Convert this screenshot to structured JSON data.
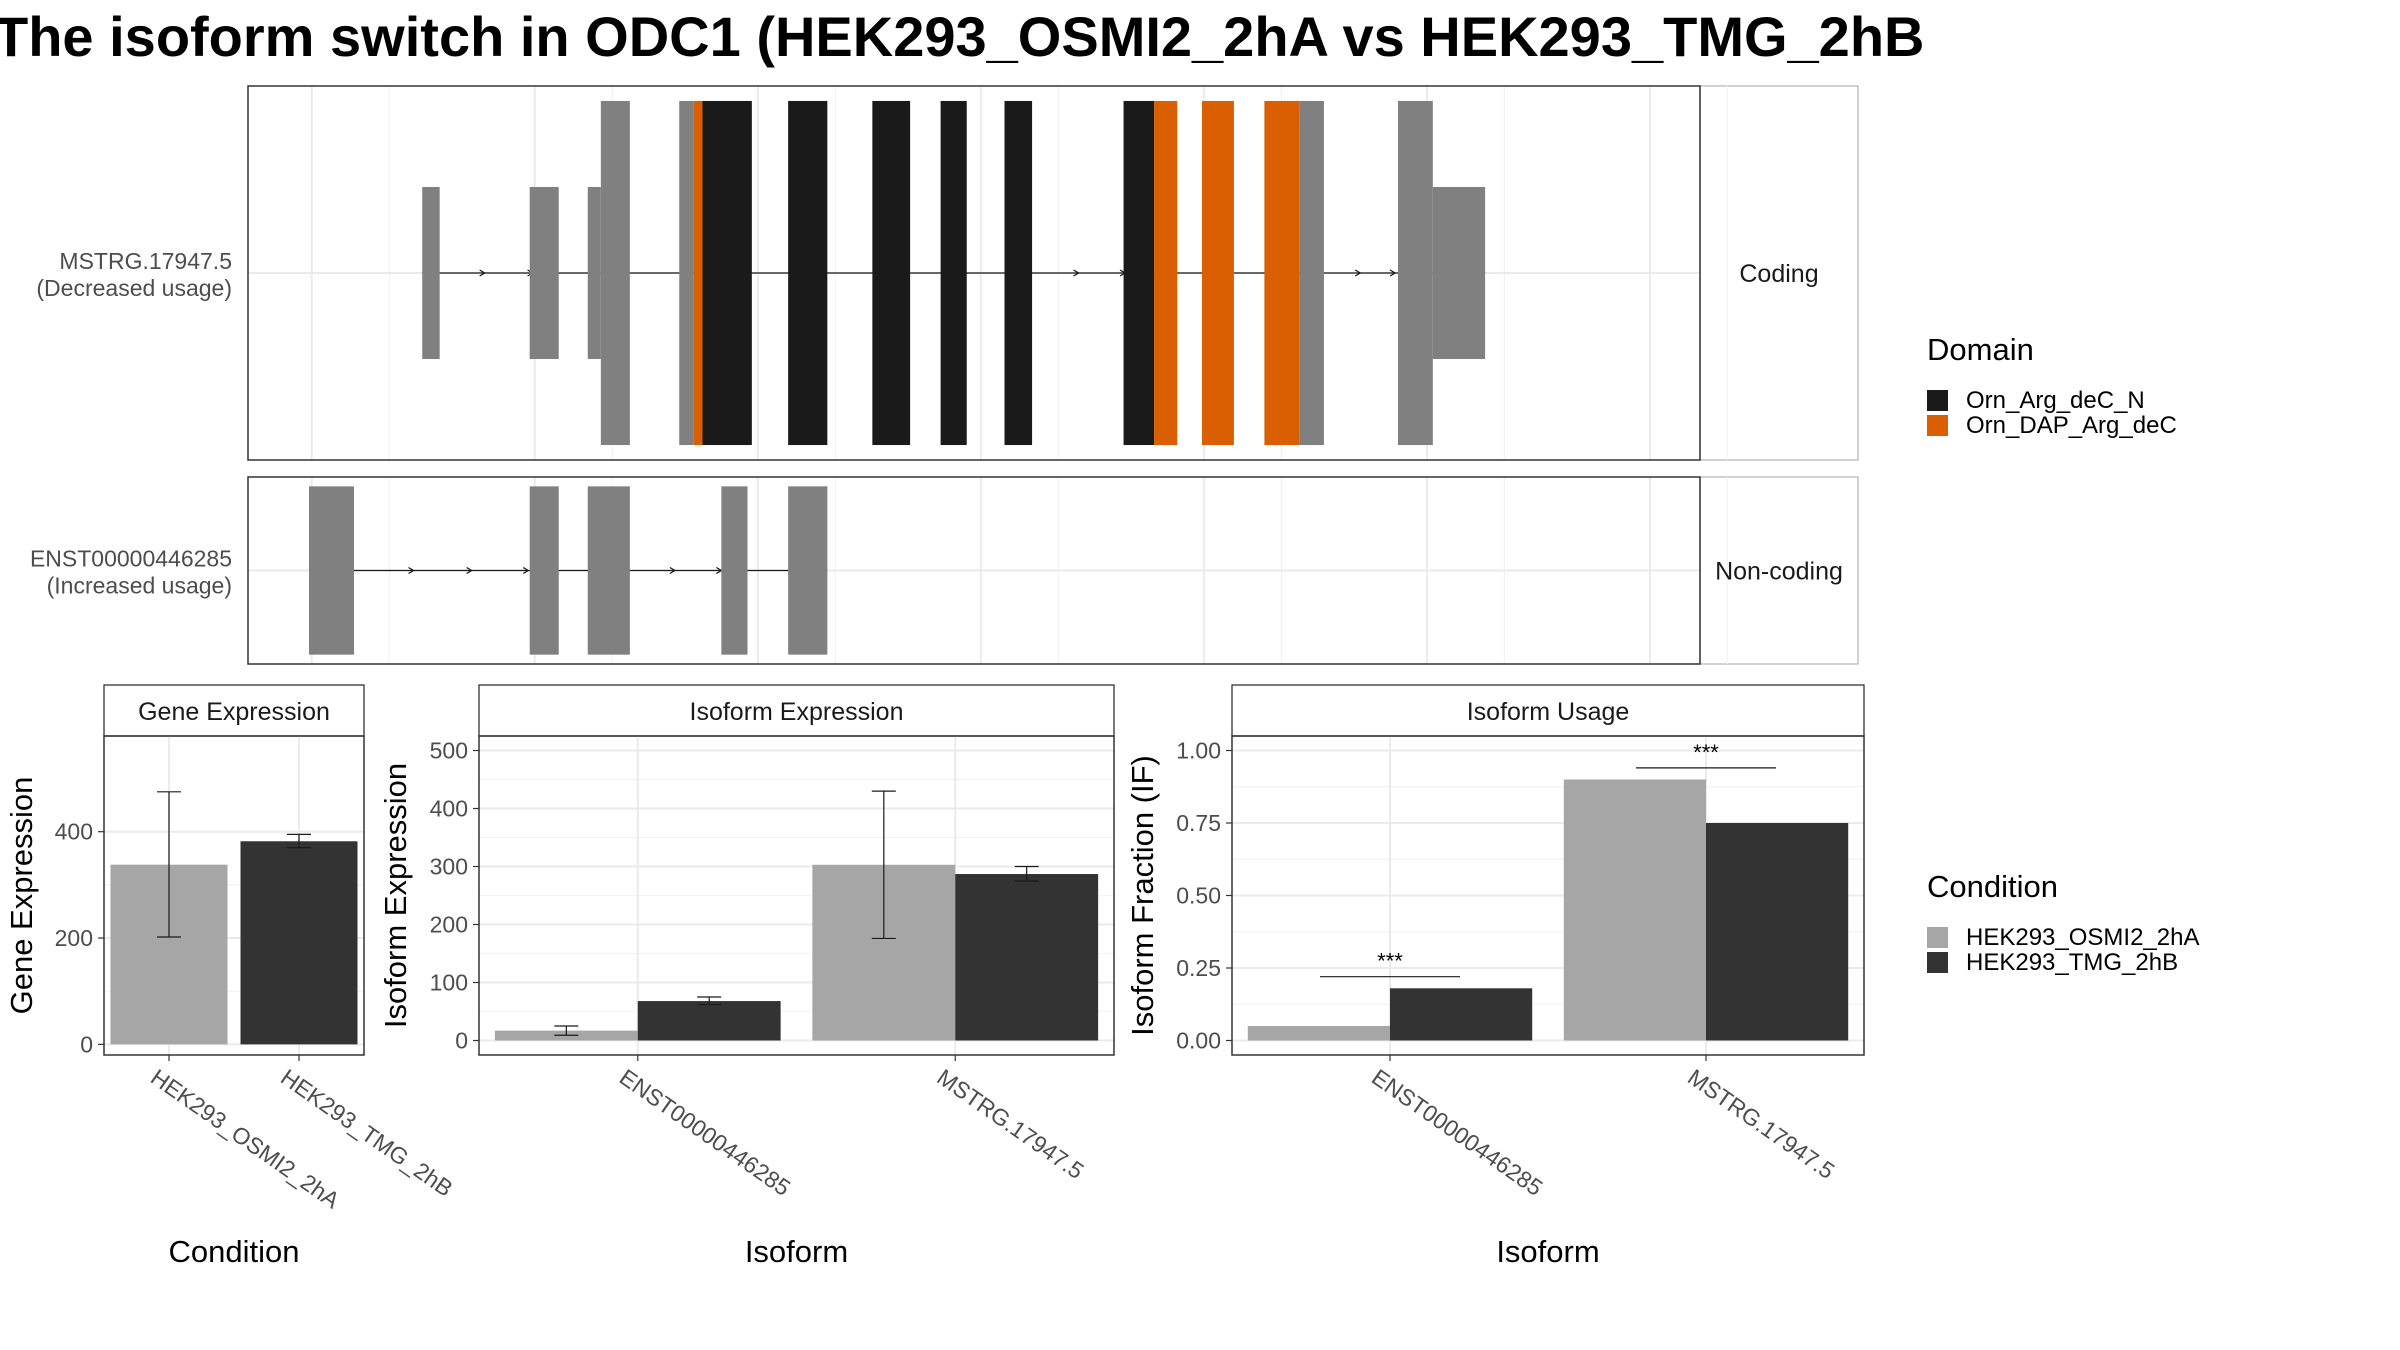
{
  "title": "The isoform switch in ODC1 (HEK293_OSMI2_2hA vs HEK293_TMG_2hB",
  "colors": {
    "exon": "#808080",
    "domain_n": "#1a1a1a",
    "domain_dap": "#d95f02",
    "cond_a": "#a6a6a6",
    "cond_b": "#333333"
  },
  "transcripts": [
    {
      "name": "MSTRG.17947.5",
      "usage": "(Decreased usage)",
      "category": "Coding",
      "span": [
        0.02,
        0.85
      ],
      "exons": [
        {
          "start": 0.12,
          "end": 0.132,
          "kind": "utr"
        },
        {
          "start": 0.194,
          "end": 0.214,
          "kind": "utr"
        },
        {
          "start": 0.234,
          "end": 0.243,
          "kind": "utr"
        },
        {
          "start": 0.243,
          "end": 0.263,
          "kind": "cds"
        },
        {
          "start": 0.297,
          "end": 0.307,
          "kind": "cds"
        },
        {
          "start": 0.307,
          "end": 0.313,
          "kind": "dap"
        },
        {
          "start": 0.313,
          "end": 0.347,
          "kind": "n"
        },
        {
          "start": 0.372,
          "end": 0.399,
          "kind": "n"
        },
        {
          "start": 0.43,
          "end": 0.456,
          "kind": "n"
        },
        {
          "start": 0.477,
          "end": 0.495,
          "kind": "n"
        },
        {
          "start": 0.521,
          "end": 0.54,
          "kind": "n"
        },
        {
          "start": 0.603,
          "end": 0.624,
          "kind": "n"
        },
        {
          "start": 0.624,
          "end": 0.64,
          "kind": "dap"
        },
        {
          "start": 0.657,
          "end": 0.679,
          "kind": "dap"
        },
        {
          "start": 0.7,
          "end": 0.724,
          "kind": "dap"
        },
        {
          "start": 0.724,
          "end": 0.741,
          "kind": "cds"
        },
        {
          "start": 0.792,
          "end": 0.816,
          "kind": "cds"
        },
        {
          "start": 0.816,
          "end": 0.852,
          "kind": "utr"
        }
      ],
      "arrows": [
        0.163,
        0.196,
        0.572,
        0.604,
        0.766,
        0.79
      ]
    },
    {
      "name": "ENST00000446285",
      "usage": "(Increased usage)",
      "category": "Non-coding",
      "span": [
        0.04,
        0.4
      ],
      "exons": [
        {
          "start": 0.042,
          "end": 0.073,
          "kind": "utr"
        },
        {
          "start": 0.194,
          "end": 0.214,
          "kind": "utr"
        },
        {
          "start": 0.234,
          "end": 0.263,
          "kind": "utr"
        },
        {
          "start": 0.326,
          "end": 0.344,
          "kind": "utr"
        },
        {
          "start": 0.372,
          "end": 0.399,
          "kind": "utr"
        }
      ],
      "arrows": [
        0.114,
        0.154,
        0.193,
        0.294,
        0.326
      ]
    }
  ],
  "legend_domain": {
    "title": "Domain",
    "items": [
      {
        "label": "Orn_Arg_deC_N",
        "color": "#1a1a1a"
      },
      {
        "label": "Orn_DAP_Arg_deC",
        "color": "#d95f02"
      }
    ]
  },
  "legend_condition": {
    "title": "Condition",
    "items": [
      {
        "label": "HEK293_OSMI2_2hA",
        "color": "#a6a6a6"
      },
      {
        "label": "HEK293_TMG_2hB",
        "color": "#333333"
      }
    ]
  },
  "chart_data": [
    {
      "type": "bar",
      "title": "Gene Expression",
      "xlabel": "Condition",
      "ylabel": "Gene Expression",
      "ylim": [
        -20,
        580
      ],
      "yticks": [
        0,
        200,
        400
      ],
      "yticklabels": [
        "0",
        "200",
        "400"
      ],
      "categories": [
        "HEK293_OSMI2_2hA",
        "HEK293_TMG_2hB"
      ],
      "series": [
        {
          "values": [
            338,
            382
          ],
          "error_low": [
            202,
            370
          ],
          "error_high": [
            475,
            395
          ]
        }
      ],
      "significance": []
    },
    {
      "type": "bar",
      "title": "Isoform Expression",
      "xlabel": "Isoform",
      "ylabel": "Isoform Expression",
      "ylim": [
        -25,
        525
      ],
      "yticks": [
        0,
        100,
        200,
        300,
        400,
        500
      ],
      "yticklabels": [
        "0",
        "100",
        "200",
        "300",
        "400",
        "500"
      ],
      "categories": [
        "ENST00000446285",
        "MSTRG.17947.5"
      ],
      "series": [
        {
          "name": "HEK293_OSMI2_2hA",
          "values": [
            17,
            303
          ],
          "error_low": [
            9,
            176
          ],
          "error_high": [
            25,
            430
          ]
        },
        {
          "name": "HEK293_TMG_2hB",
          "values": [
            68,
            287
          ],
          "error_low": [
            62,
            275
          ],
          "error_high": [
            75,
            300
          ]
        }
      ],
      "significance": []
    },
    {
      "type": "bar",
      "title": "Isoform Usage",
      "xlabel": "Isoform",
      "ylabel": "Isoform Fraction (IF)",
      "ylim": [
        -0.05,
        1.05
      ],
      "yticks": [
        0,
        0.25,
        0.5,
        0.75,
        1.0
      ],
      "yticklabels": [
        "0.00",
        "0.25",
        "0.50",
        "0.75",
        "1.00"
      ],
      "categories": [
        "ENST00000446285",
        "MSTRG.17947.5"
      ],
      "series": [
        {
          "name": "HEK293_OSMI2_2hA",
          "values": [
            0.05,
            0.9
          ]
        },
        {
          "name": "HEK293_TMG_2hB",
          "values": [
            0.18,
            0.75
          ]
        }
      ],
      "significance": [
        {
          "category": 0,
          "label": "***",
          "y": 0.22
        },
        {
          "category": 1,
          "label": "***",
          "y": 0.94
        }
      ]
    }
  ]
}
